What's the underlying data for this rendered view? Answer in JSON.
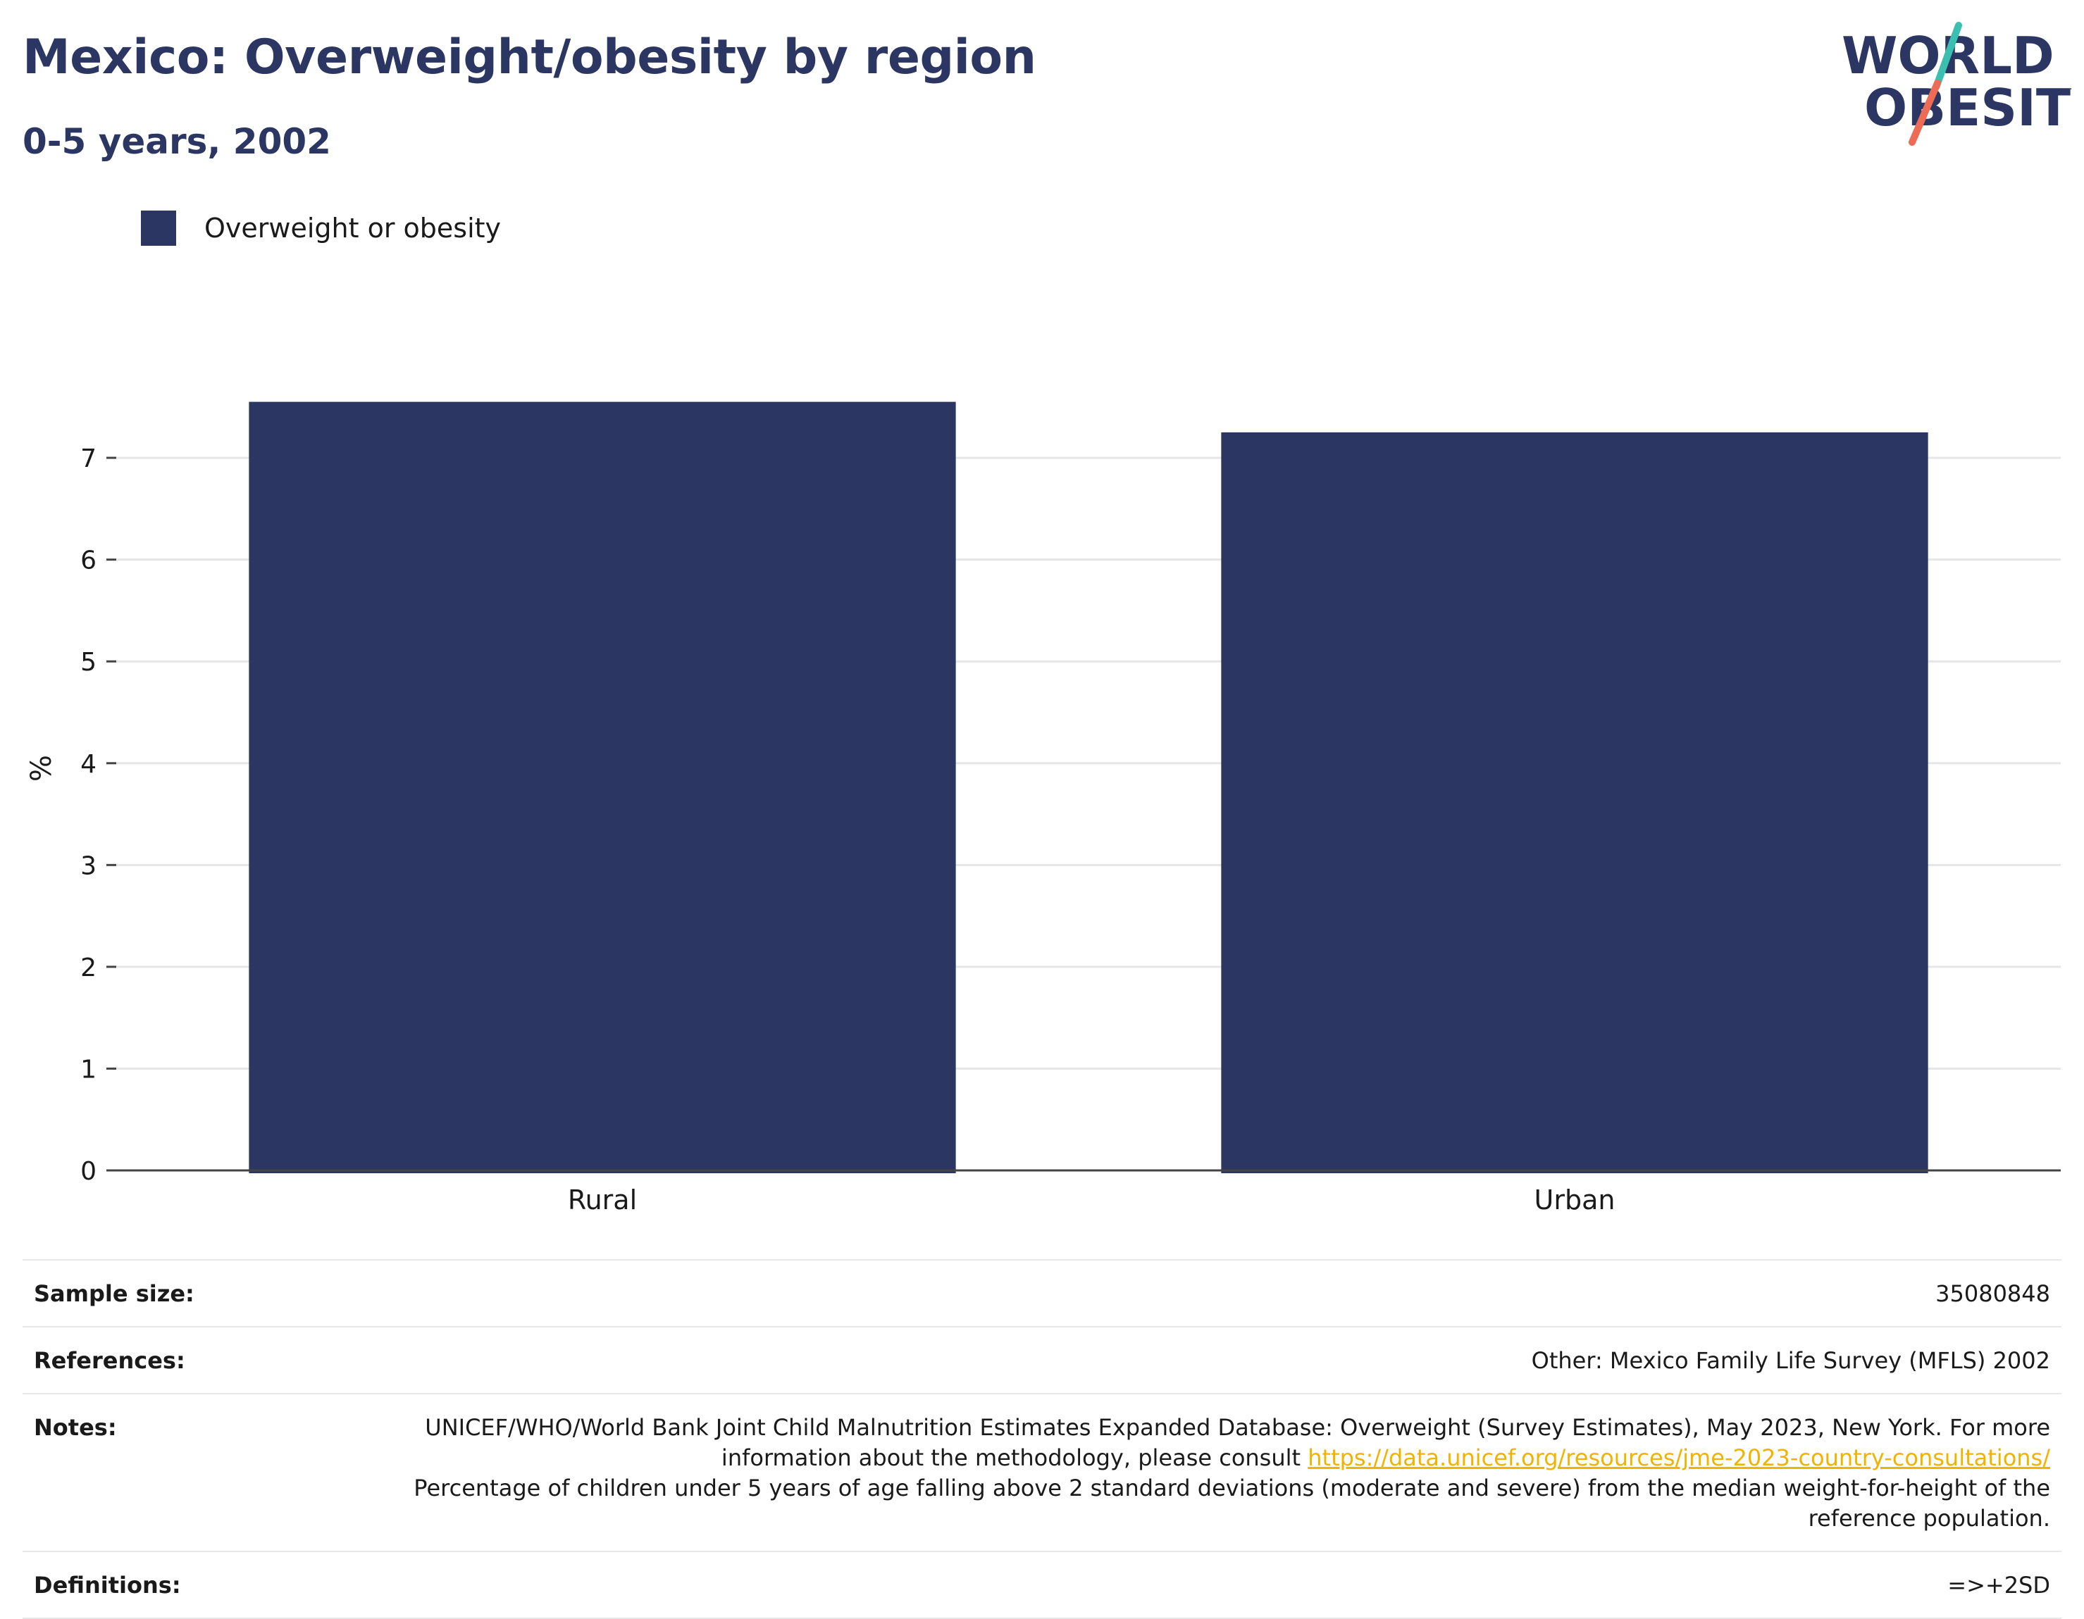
{
  "header": {
    "title": "Mexico: Overweight/obesity by region",
    "subtitle": "0-5 years, 2002"
  },
  "logo": {
    "line1": "WORLD",
    "line2": "OBESITY",
    "colors": {
      "text": "#2b3762",
      "slash_top": "#3bbfb0",
      "slash_bottom": "#ee6c55"
    }
  },
  "legend": {
    "items": [
      {
        "label": "Overweight or obesity",
        "color": "#2b3762"
      }
    ]
  },
  "chart_data": {
    "type": "bar",
    "title": "Mexico: Overweight/obesity by region",
    "subtitle": "0-5 years, 2002",
    "categories": [
      "Rural",
      "Urban"
    ],
    "series": [
      {
        "name": "Overweight or obesity",
        "values": [
          7.55,
          7.25
        ],
        "color": "#2b3762"
      }
    ],
    "xlabel": "",
    "ylabel": "%",
    "ylim": [
      0,
      7.9
    ],
    "yticks": [
      0,
      1,
      2,
      3,
      4,
      5,
      6,
      7
    ],
    "grid": true,
    "legend_position": "top-left"
  },
  "meta": {
    "sample_size_label": "Sample size:",
    "sample_size_value": "35080848",
    "references_label": "References:",
    "references_value": "Other: Mexico Family Life Survey (MFLS) 2002",
    "notes_label": "Notes:",
    "notes_text_1": "UNICEF/WHO/World Bank Joint Child Malnutrition Estimates Expanded Database: Overweight (Survey Estimates), May 2023, New York. For more information about the methodology, please consult",
    "notes_link": "https://data.unicef.org/resources/jme-2023-country-consultations/",
    "notes_text_2": "Percentage of children under 5 years of age falling above 2 standard deviations (moderate and severe) from the median weight-for-height of the reference population.",
    "definitions_label": "Definitions:",
    "definitions_value": "=>+2SD"
  }
}
